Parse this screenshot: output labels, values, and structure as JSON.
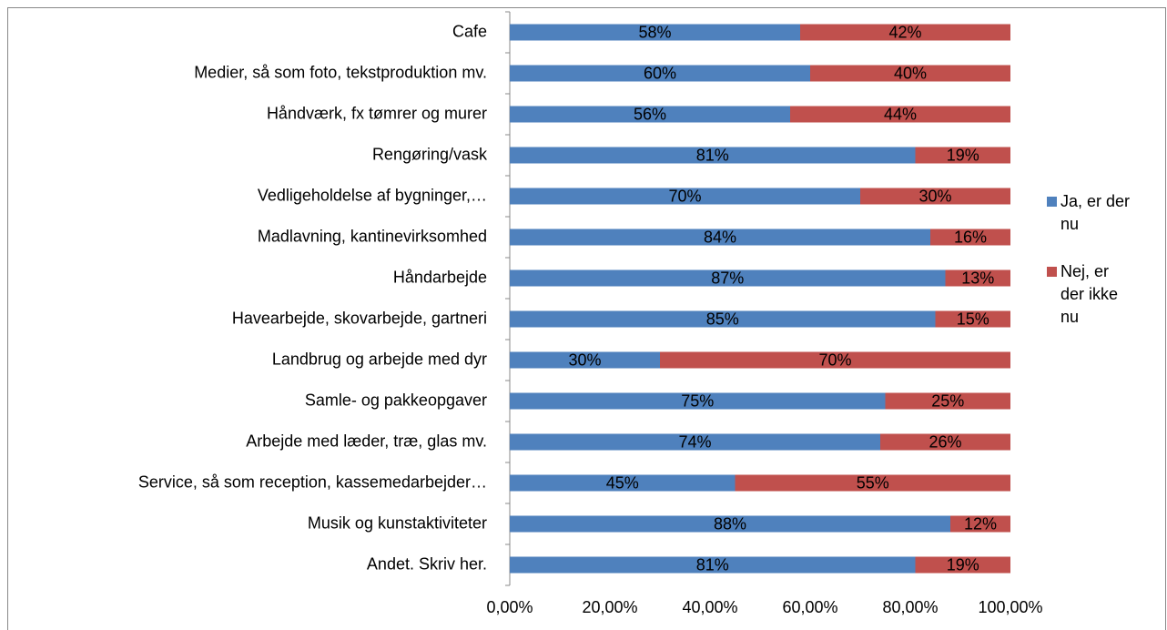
{
  "chart_data": {
    "type": "stacked_barh",
    "categories": [
      "Cafe",
      "Medier, så som foto, tekstproduktion mv.",
      "Håndværk, fx tømrer og murer",
      "Rengøring/vask",
      "Vedligeholdelse af bygninger,…",
      "Madlavning, kantinevirksomhed",
      "Håndarbejde",
      "Havearbejde, skovarbejde, gartneri",
      "Landbrug og arbejde med dyr",
      "Samle- og pakkeopgaver",
      "Arbejde med læder, træ, glas mv.",
      "Service, så som reception, kassemedarbejder…",
      "Musik og kunstaktiviteter",
      "Andet. Skriv her."
    ],
    "series": [
      {
        "name": "Ja, er der nu",
        "color": "#4f81bd",
        "values": [
          58,
          60,
          56,
          81,
          70,
          84,
          87,
          85,
          30,
          75,
          74,
          45,
          88,
          81
        ],
        "value_labels": [
          "58%",
          "60%",
          "56%",
          "81%",
          "70%",
          "84%",
          "87%",
          "85%",
          "30%",
          "75%",
          "74%",
          "45%",
          "88%",
          "81%"
        ]
      },
      {
        "name": "Nej, er der ikke nu",
        "color": "#c0504d",
        "values": [
          42,
          40,
          44,
          19,
          30,
          16,
          13,
          15,
          70,
          25,
          26,
          55,
          12,
          19
        ],
        "value_labels": [
          "42%",
          "40%",
          "44%",
          "19%",
          "30%",
          "16%",
          "13%",
          "15%",
          "70%",
          "25%",
          "26%",
          "55%",
          "12%",
          "19%"
        ]
      }
    ],
    "xlim": [
      0,
      100
    ],
    "xticks": [
      {
        "value": 0,
        "label": "0,00%"
      },
      {
        "value": 20,
        "label": "20,00%"
      },
      {
        "value": 40,
        "label": "40,00%"
      },
      {
        "value": 60,
        "label": "60,00%"
      },
      {
        "value": 80,
        "label": "80,00%"
      },
      {
        "value": 100,
        "label": "100,00%"
      }
    ],
    "grid": false,
    "legend": "right"
  }
}
